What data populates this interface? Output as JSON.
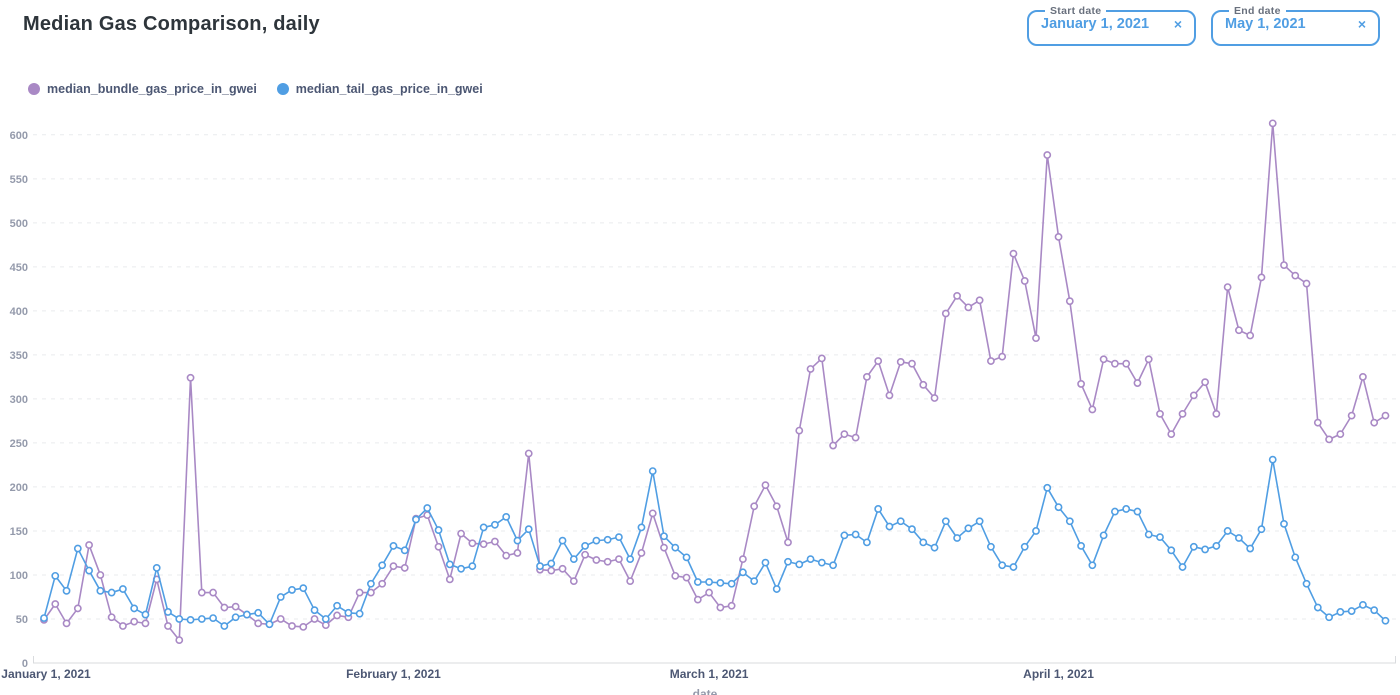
{
  "header": {
    "title": "Median Gas Comparison, daily"
  },
  "filters": {
    "start": {
      "label": "Start date",
      "value": "January 1, 2021",
      "clear_icon": "×"
    },
    "end": {
      "label": "End date",
      "value": "May 1, 2021",
      "clear_icon": "×"
    }
  },
  "legend": [
    {
      "label": "median_bundle_gas_price_in_gwei",
      "color": "#A989C5"
    },
    {
      "label": "median_tail_gas_price_in_gwei",
      "color": "#509EE3"
    }
  ],
  "chart_data": {
    "type": "line",
    "title": "Median Gas Comparison, daily",
    "marker": "open-circle",
    "grid": true,
    "legend_position": "top-left",
    "x_axis": {
      "title": "date",
      "start_date": "2021-01-01",
      "end_date": "2021-04-30",
      "interval": "daily",
      "tick_labels": [
        "January 1, 2021",
        "February 1, 2021",
        "March 1, 2021",
        "April 1, 2021"
      ],
      "tick_day_indices": [
        0,
        31,
        59,
        90
      ]
    },
    "y_axis": {
      "min": 0,
      "max": 600,
      "tick_step": 50
    },
    "series": [
      {
        "name": "median_bundle_gas_price_in_gwei",
        "color": "#A989C5",
        "values": [
          49,
          67,
          45,
          62,
          134,
          100,
          52,
          42,
          47,
          45,
          95,
          42,
          26,
          324,
          80,
          80,
          63,
          64,
          55,
          45,
          44,
          50,
          42,
          41,
          50,
          43,
          54,
          52,
          80,
          80,
          90,
          110,
          108,
          164,
          168,
          132,
          95,
          147,
          136,
          135,
          138,
          122,
          125,
          238,
          106,
          105,
          107,
          93,
          123,
          117,
          115,
          118,
          93,
          125,
          170,
          131,
          99,
          97,
          72,
          80,
          63,
          65,
          118,
          178,
          202,
          178,
          137,
          264,
          334,
          346,
          247,
          260,
          256,
          325,
          343,
          304,
          342,
          340,
          316,
          301,
          397,
          417,
          404,
          412,
          343,
          348,
          465,
          434,
          369,
          577,
          484,
          411,
          317,
          288,
          345,
          340,
          340,
          318,
          345,
          283,
          260,
          283,
          304,
          319,
          283,
          427,
          378,
          372,
          438,
          613,
          452,
          440,
          431,
          273,
          254,
          260,
          281,
          325,
          273,
          281
        ]
      },
      {
        "name": "median_tail_gas_price_in_gwei",
        "color": "#509EE3",
        "values": [
          51,
          99,
          82,
          130,
          105,
          82,
          80,
          84,
          62,
          55,
          108,
          58,
          50,
          49,
          50,
          51,
          42,
          52,
          55,
          57,
          44,
          75,
          83,
          85,
          60,
          50,
          65,
          57,
          56,
          90,
          111,
          133,
          128,
          163,
          176,
          151,
          112,
          107,
          110,
          154,
          157,
          166,
          139,
          152,
          110,
          113,
          139,
          118,
          133,
          139,
          140,
          143,
          118,
          154,
          218,
          144,
          131,
          120,
          92,
          92,
          91,
          90,
          103,
          93,
          114,
          84,
          115,
          112,
          118,
          114,
          111,
          145,
          146,
          137,
          175,
          155,
          161,
          152,
          137,
          131,
          161,
          142,
          153,
          161,
          132,
          111,
          109,
          132,
          150,
          199,
          177,
          161,
          133,
          111,
          145,
          172,
          175,
          172,
          146,
          143,
          128,
          109,
          132,
          129,
          133,
          150,
          142,
          130,
          152,
          231,
          158,
          120,
          90,
          63,
          52,
          58,
          59,
          66,
          60,
          48
        ]
      }
    ]
  }
}
